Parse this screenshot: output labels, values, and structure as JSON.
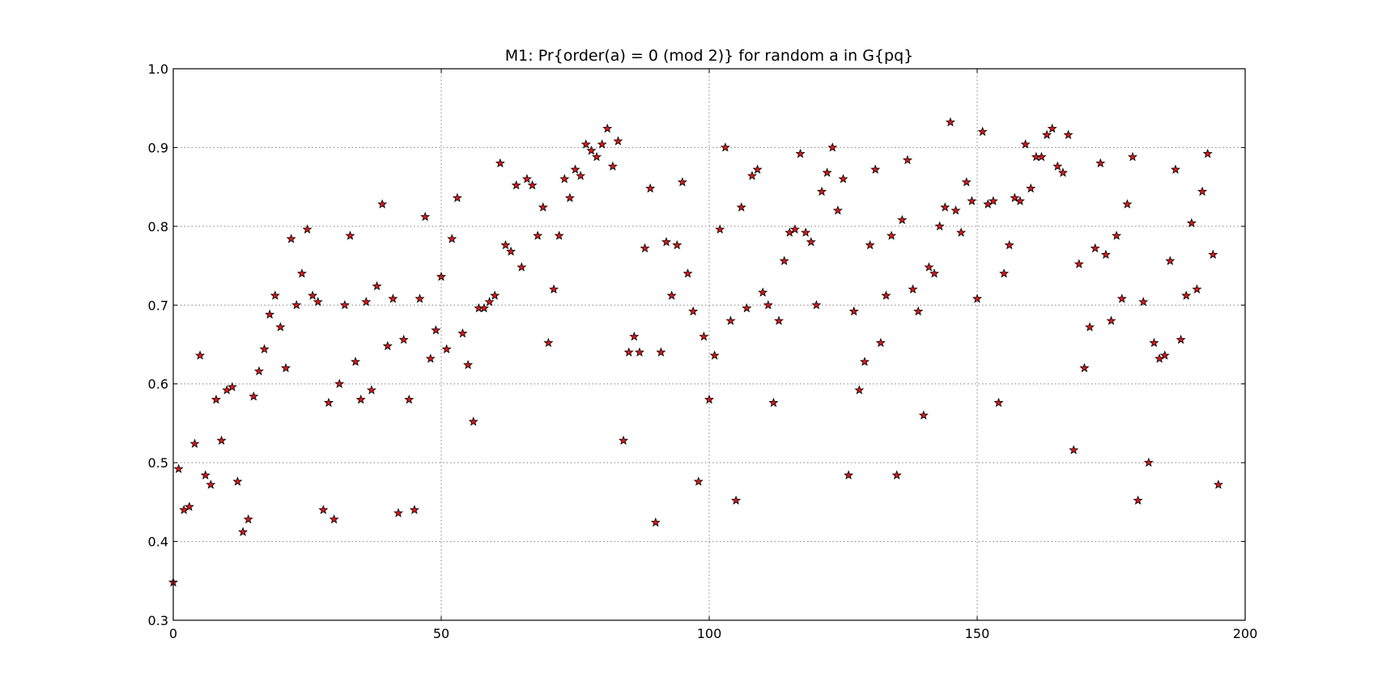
{
  "chart_data": {
    "type": "scatter",
    "title": "M1: Pr{order(a) = 0 (mod 2)} for random a in G{pq}",
    "xlabel": "",
    "ylabel": "",
    "xlim": [
      0,
      200
    ],
    "ylim": [
      0.3,
      1.0
    ],
    "xticks": [
      "0",
      "50",
      "100",
      "150",
      "200"
    ],
    "yticks": [
      "0.3",
      "0.4",
      "0.5",
      "0.6",
      "0.7",
      "0.8",
      "0.9",
      "1.0"
    ],
    "grid": true,
    "marker": "star",
    "marker_color": "#d81818",
    "y": [
      0.348,
      0.492,
      0.44,
      0.444,
      0.524,
      0.636,
      0.484,
      0.472,
      0.58,
      0.528,
      0.592,
      0.596,
      0.476,
      0.412,
      0.428,
      0.584,
      0.616,
      0.644,
      0.688,
      0.712,
      0.672,
      0.62,
      0.784,
      0.7,
      0.74,
      0.796,
      0.712,
      0.704,
      0.44,
      0.576,
      0.428,
      0.6,
      0.7,
      0.788,
      0.628,
      0.58,
      0.704,
      0.592,
      0.724,
      0.828,
      0.648,
      0.708,
      0.436,
      0.656,
      0.58,
      0.44,
      0.708,
      0.812,
      0.632,
      0.668,
      0.736,
      0.644,
      0.784,
      0.836,
      0.664,
      0.624,
      0.552,
      0.696,
      0.696,
      0.704,
      0.712,
      0.88,
      0.776,
      0.768,
      0.852,
      0.748,
      0.86,
      0.852,
      0.788,
      0.824,
      0.652,
      0.72,
      0.788,
      0.86,
      0.836,
      0.872,
      0.864,
      0.904,
      0.896,
      0.888,
      0.904,
      0.924,
      0.876,
      0.908,
      0.528,
      0.64,
      0.66,
      0.64,
      0.772,
      0.848,
      0.424,
      0.64,
      0.78,
      0.712,
      0.776,
      0.856,
      0.74,
      0.692,
      0.476,
      0.66,
      0.58,
      0.636,
      0.796,
      0.9,
      0.68,
      0.452,
      0.824,
      0.696,
      0.864,
      0.872,
      0.716,
      0.7,
      0.576,
      0.68,
      0.756,
      0.792,
      0.796,
      0.892,
      0.792,
      0.78,
      0.7,
      0.844,
      0.868,
      0.9,
      0.82,
      0.86,
      0.484,
      0.692,
      0.592,
      0.628,
      0.776,
      0.872,
      0.652,
      0.712,
      0.788,
      0.484,
      0.808,
      0.884,
      0.72,
      0.692,
      0.56,
      0.748,
      0.74,
      0.8,
      0.824,
      0.932,
      0.82,
      0.792,
      0.856,
      0.832,
      0.708,
      0.92,
      0.828,
      0.832,
      0.576,
      0.74,
      0.776,
      0.836,
      0.832,
      0.904,
      0.848,
      0.888,
      0.888,
      0.916,
      0.924,
      0.876,
      0.868,
      0.916,
      0.516,
      0.752,
      0.62,
      0.672,
      0.772,
      0.88,
      0.764,
      0.68,
      0.788,
      0.708,
      0.828,
      0.888,
      0.452,
      0.704,
      0.5,
      0.652,
      0.632,
      0.636,
      0.756,
      0.872,
      0.656,
      0.712,
      0.804,
      0.72,
      0.844,
      0.892,
      0.764,
      0.472
    ]
  }
}
